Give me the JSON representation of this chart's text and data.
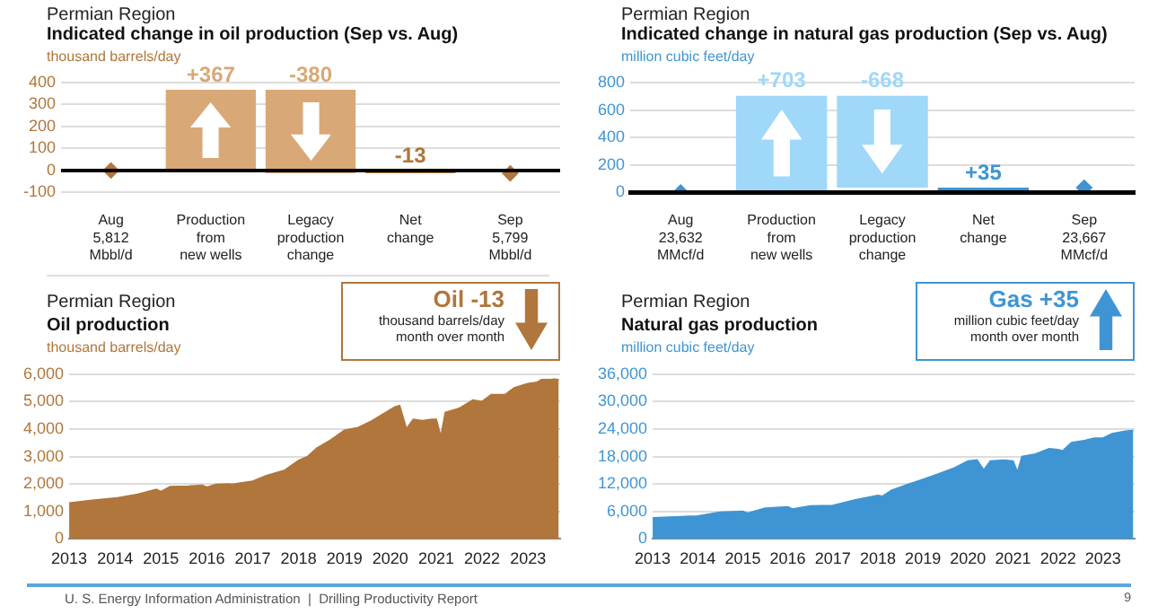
{
  "chart_data": [
    {
      "type": "bar",
      "subtitle": "Permian Region",
      "title": "Indicated change in oil production (Sep vs. Aug)",
      "ylabel": "thousand barrels/day",
      "categories": [
        "Aug\n5,812\nMbbl/d",
        "Production\nfrom\nnew wells",
        "Legacy\nproduction\nchange",
        "Net\nchange",
        "Sep\n5,799\nMbbl/d"
      ],
      "series": [
        {
          "type": "bar",
          "values": [
            null,
            367,
            -380,
            -13,
            null
          ],
          "base": [
            null,
            0,
            367,
            0,
            null
          ],
          "colors": [
            "#d9a877",
            "#d9a877",
            "#d9a877",
            "#b0763b",
            "#d9a877"
          ],
          "value_labels": [
            null,
            "+367",
            "-380",
            "-13",
            null
          ]
        },
        {
          "type": "scatter",
          "color": "#b0763b",
          "marker": "diamond",
          "values": [
            0,
            null,
            null,
            null,
            -13
          ]
        }
      ],
      "ylim": [
        -100,
        400
      ],
      "yticks": [
        -100,
        0,
        100,
        200,
        300,
        400
      ],
      "grid": "y",
      "ref_lines": [
        {
          "axis": "y",
          "value": 0,
          "color": "#000000"
        }
      ]
    },
    {
      "type": "bar",
      "subtitle": "Permian Region",
      "title": "Indicated change in natural gas production (Sep vs. Aug)",
      "ylabel": "million cubic feet/day",
      "categories": [
        "Aug\n23,632\nMMcf/d",
        "Production\nfrom\nnew wells",
        "Legacy\nproduction\nchange",
        "Net\nchange",
        "Sep\n23,667\nMMcf/d"
      ],
      "series": [
        {
          "type": "bar",
          "values": [
            null,
            703,
            -668,
            35,
            null
          ],
          "base": [
            null,
            0,
            703,
            0,
            null
          ],
          "colors": [
            "#9fd8f8",
            "#9fd8f8",
            "#9fd8f8",
            "#3f95d3",
            "#9fd8f8"
          ],
          "value_labels": [
            null,
            "+703",
            "-668",
            "+35",
            null
          ]
        },
        {
          "type": "scatter",
          "color": "#3f95d3",
          "marker": "diamond",
          "values": [
            0,
            null,
            null,
            null,
            35
          ]
        }
      ],
      "ylim": [
        0,
        800
      ],
      "yticks": [
        0,
        200,
        400,
        600,
        800
      ],
      "grid": "y"
    },
    {
      "type": "area",
      "subtitle": "Permian Region",
      "title": "Oil production",
      "ylabel": "thousand barrels/day",
      "annotations": [
        "Oil -13",
        "thousand barrels/day",
        "month over month"
      ],
      "x": [
        2013.0,
        2013.5,
        2014.0,
        2014.5,
        2014.9,
        2015.0,
        2015.2,
        2015.6,
        2015.9,
        2016.0,
        2016.2,
        2016.6,
        2017.0,
        2017.3,
        2017.7,
        2018.0,
        2018.2,
        2018.4,
        2018.7,
        2019.0,
        2019.3,
        2019.6,
        2019.9,
        2020.1,
        2020.2,
        2020.35,
        2020.5,
        2020.7,
        2020.9,
        2021.0,
        2021.1,
        2021.2,
        2021.5,
        2021.8,
        2022.0,
        2022.2,
        2022.5,
        2022.7,
        2022.9,
        2023.0,
        2023.2,
        2023.3,
        2023.5,
        2023.58,
        2023.67
      ],
      "series": [
        {
          "color": "#b0763b",
          "values": [
            1300,
            1400,
            1480,
            1620,
            1800,
            1720,
            1900,
            1920,
            1950,
            1880,
            1980,
            2000,
            2100,
            2300,
            2500,
            2850,
            3000,
            3300,
            3600,
            3950,
            4050,
            4300,
            4600,
            4800,
            4850,
            4000,
            4350,
            4300,
            4350,
            4350,
            3700,
            4600,
            4750,
            5050,
            5000,
            5250,
            5250,
            5500,
            5600,
            5650,
            5700,
            5800,
            5800,
            5812,
            5799
          ]
        }
      ],
      "xlim": [
        2013,
        2023.7
      ],
      "xticks": [
        2013,
        2014,
        2015,
        2016,
        2017,
        2018,
        2019,
        2020,
        2021,
        2022,
        2023
      ],
      "ylim": [
        0,
        6000
      ],
      "yticks": [
        0,
        {
          "value": 1000,
          "label": "1,000"
        },
        {
          "value": 2000,
          "label": "2,000"
        },
        {
          "value": 3000,
          "label": "3,000"
        },
        {
          "value": 4000,
          "label": "4,000"
        },
        {
          "value": 5000,
          "label": "5,000"
        },
        {
          "value": 6000,
          "label": "6,000"
        }
      ],
      "grid": "y"
    },
    {
      "type": "area",
      "subtitle": "Permian Region",
      "title": "Natural gas production",
      "ylabel": "million cubic feet/day",
      "annotations": [
        "Gas +35",
        "million cubic feet/day",
        "month over month"
      ],
      "x": [
        2013.0,
        2013.5,
        2014.0,
        2014.5,
        2015.0,
        2015.1,
        2015.5,
        2016.0,
        2016.1,
        2016.5,
        2017.0,
        2017.5,
        2018.0,
        2018.1,
        2018.3,
        2018.7,
        2019.0,
        2019.3,
        2019.7,
        2020.0,
        2020.2,
        2020.35,
        2020.5,
        2020.8,
        2021.0,
        2021.1,
        2021.2,
        2021.5,
        2021.8,
        2022.0,
        2022.1,
        2022.3,
        2022.6,
        2022.8,
        2023.0,
        2023.2,
        2023.5,
        2023.58,
        2023.67
      ],
      "series": [
        {
          "color": "#3f95d3",
          "values": [
            4600,
            4800,
            5000,
            5800,
            6000,
            5600,
            6700,
            7000,
            6500,
            7200,
            7300,
            8500,
            9500,
            9300,
            10600,
            12000,
            13000,
            14000,
            15500,
            17000,
            17200,
            15000,
            17000,
            17200,
            17000,
            14500,
            18000,
            18500,
            19700,
            19500,
            19200,
            21000,
            21500,
            22000,
            22000,
            23000,
            23500,
            23632,
            23667
          ]
        }
      ],
      "xlim": [
        2013,
        2023.7
      ],
      "xticks": [
        2013,
        2014,
        2015,
        2016,
        2017,
        2018,
        2019,
        2020,
        2021,
        2022,
        2023
      ],
      "ylim": [
        0,
        36000
      ],
      "yticks": [
        0,
        {
          "value": 6000,
          "label": "6,000"
        },
        {
          "value": 12000,
          "label": "12,000"
        },
        {
          "value": 18000,
          "label": "18,000"
        },
        {
          "value": 24000,
          "label": "24,000"
        },
        {
          "value": 30000,
          "label": "30,000"
        },
        {
          "value": 36000,
          "label": "36,000"
        }
      ],
      "grid": "y"
    },
    {
      "type": "other",
      "annotations": [
        "U. S. Energy Information Administration  |  Drilling Productivity Report",
        "9"
      ]
    }
  ]
}
